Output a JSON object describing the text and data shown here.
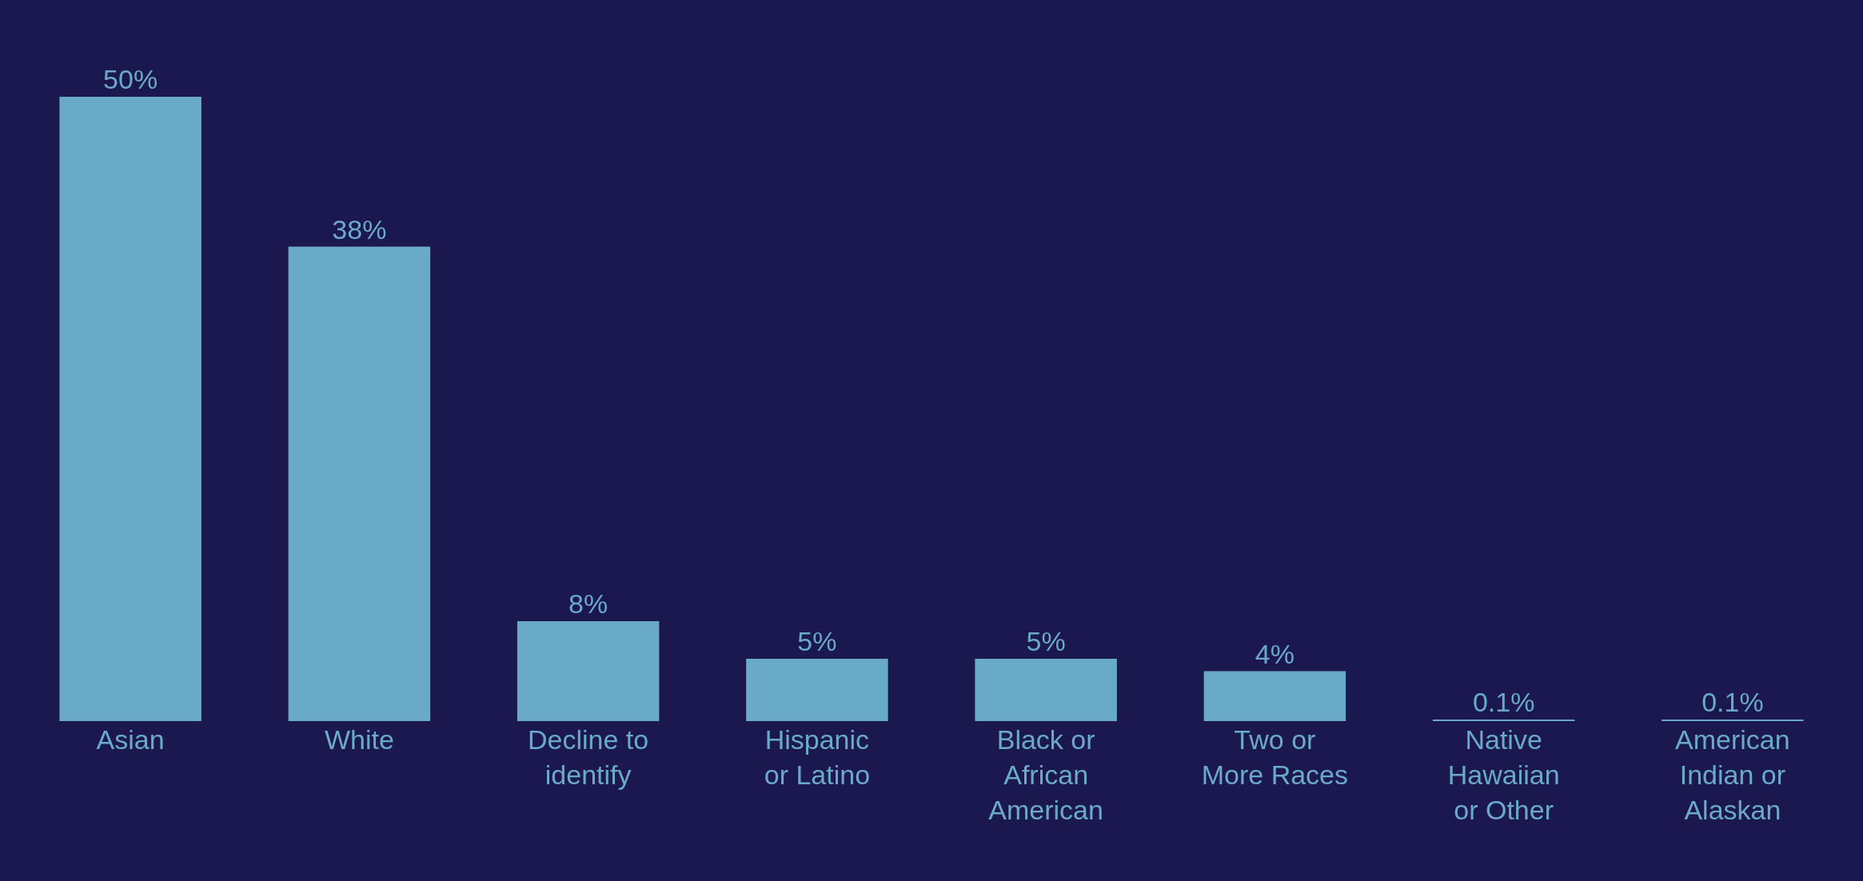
{
  "chart_data": {
    "type": "bar",
    "categories": [
      "Asian",
      "White",
      "Decline to\nidentify",
      "Hispanic\nor Latino",
      "Black or\nAfrican\nAmerican",
      "Two or\nMore Races",
      "Native\nHawaiian\nor Other",
      "American\nIndian or\nAlaskan"
    ],
    "values": [
      50,
      38,
      8,
      5,
      5,
      4,
      0.1,
      0.1
    ],
    "value_labels": [
      "50%",
      "38%",
      "8%",
      "5%",
      "5%",
      "4%",
      "0.1%",
      "0.1%"
    ],
    "color": "#69aac8",
    "grid": false,
    "legend": false
  }
}
